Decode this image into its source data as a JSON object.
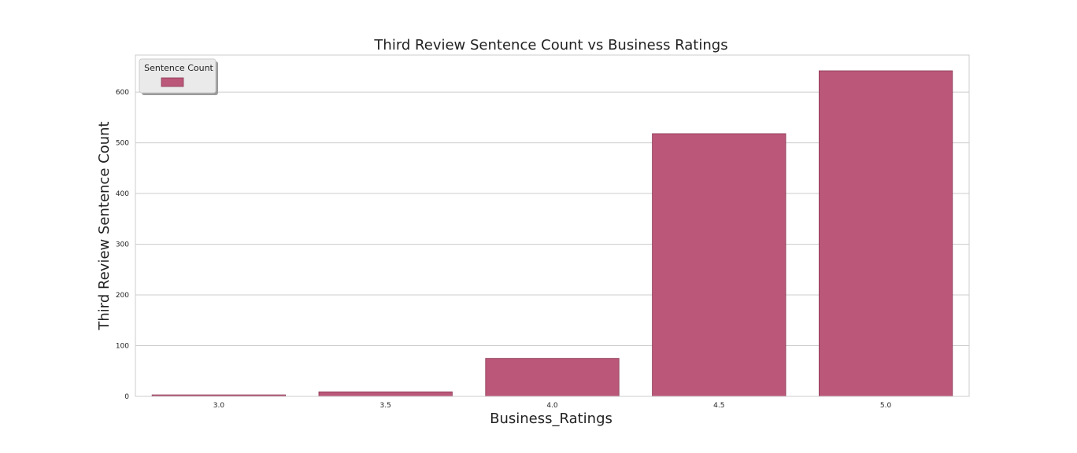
{
  "chart_data": {
    "type": "bar",
    "title": "Third Review Sentence Count vs Business Ratings",
    "xlabel": "Business_Ratings",
    "ylabel": "Third Review Sentence Count",
    "categories": [
      "3.0",
      "3.5",
      "4.0",
      "4.5",
      "5.0"
    ],
    "series": [
      {
        "name": "",
        "values": [
          3,
          9,
          75,
          518,
          642
        ]
      }
    ],
    "ylim": [
      0,
      673
    ],
    "yticks": [
      0,
      100,
      200,
      300,
      400,
      500,
      600
    ],
    "grid": true,
    "legend": {
      "title": "Sentence Count",
      "placement": "top-left"
    },
    "colors": {
      "bar": "#bb5778",
      "bar_edge": "#8a3a58",
      "grid": "#cccccc",
      "axes_edge": "#cccccc",
      "legend_bg": "#eaeaea"
    }
  }
}
